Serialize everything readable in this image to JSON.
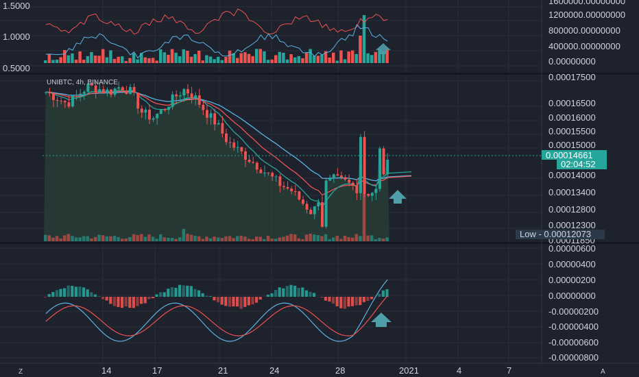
{
  "colors": {
    "background": "#1e222d",
    "panel_bg": "#1e222d",
    "grid": "#2a2e39",
    "up": "#26a69a",
    "down": "#ef5350",
    "ema_fast": "#26a69a",
    "ema_mid": "#ef5350",
    "ema_slow": "#5bb5e6",
    "price_tag": "#26a69a",
    "arrow": "#4e9fa8"
  },
  "header": {
    "symbol_label": "UNIBTC, 4h, BINANCE"
  },
  "top_panel": {
    "left_axis": [
      "1.5000",
      "1.0000",
      "0.5000"
    ],
    "right_axis": [
      "1600000.00000000",
      "1200000.00000000",
      "800000.00000000",
      "400000.00000000",
      "0.00000000"
    ]
  },
  "main_panel": {
    "right_axis": [
      "0.00017500",
      "0.00016500",
      "0.00016000",
      "0.00015500",
      "0.00015000",
      "0.00014000",
      "0.00013400",
      "0.00012800",
      "0.00012300",
      "0.00011850"
    ],
    "price_tag": "0.00014661",
    "countdown_tag": "02:04:52",
    "low_label": "Low - 0.00012073"
  },
  "macd_panel": {
    "right_axis": [
      "0.00000600",
      "0.00000400",
      "0.00000200",
      "0.00000000",
      "-0.00000200",
      "-0.00000400",
      "-0.00000600",
      "-0.00000800"
    ]
  },
  "time_axis": {
    "labels": [
      "14",
      "17",
      "21",
      "24",
      "28",
      "2021",
      "4",
      "7"
    ],
    "left_icon_label": "Z",
    "right_icon_label": "A"
  },
  "chart_data": {
    "type": "candlestick",
    "title": "UNIBTC, 4h, BINANCE",
    "price_close_approx": [
      0.00017,
      0.000168,
      0.000166,
      0.000169,
      0.000172,
      0.000171,
      0.00017,
      0.000172,
      0.00017,
      0.000163,
      0.000161,
      0.000164,
      0.000168,
      0.000171,
      0.000168,
      0.000163,
      0.000159,
      0.000153,
      0.00015,
      0.000147,
      0.000144,
      0.000141,
      0.000138,
      0.000136,
      0.000132,
      0.000128,
      0.000138,
      0.00014,
      0.000139,
      0.000137,
      0.000135,
      0.000136,
      0.000146
    ],
    "current_price": 0.00014661,
    "low": 0.00012073,
    "ylim": [
      0.0001185,
      0.000175
    ]
  }
}
